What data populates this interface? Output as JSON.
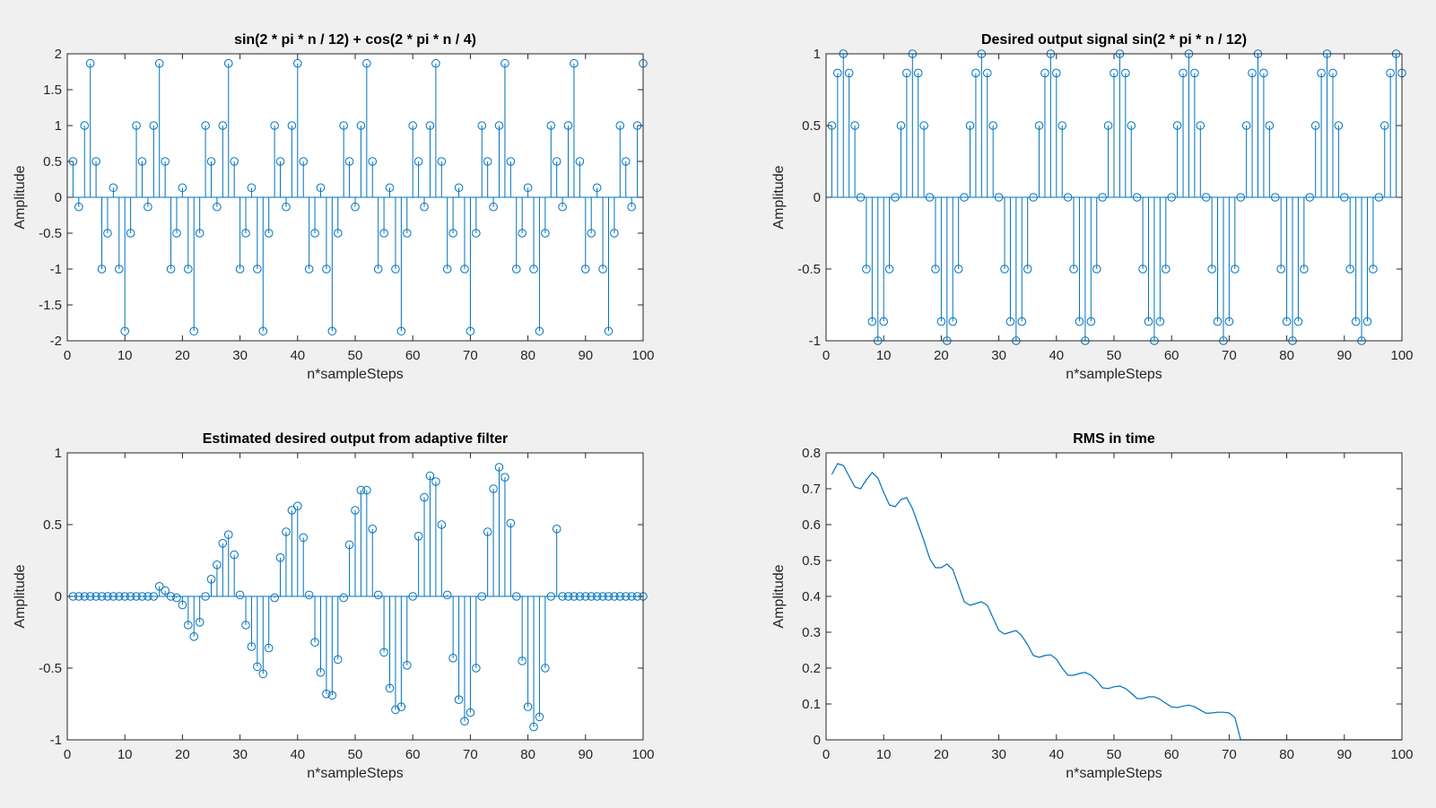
{
  "figure": {
    "background": "#f0f0f0",
    "axes_background": "#ffffff",
    "line_color": "#0072bd",
    "axis_color": "#262626"
  },
  "chart_data": [
    {
      "type": "stem",
      "title": "sin(2 * pi * n / 12) + cos(2 * pi * n / 4)",
      "xlabel": "n*sampleSteps",
      "ylabel": "Amplitude",
      "xlim": [
        0,
        100
      ],
      "ylim": [
        -2,
        2
      ],
      "xticks": [
        0,
        10,
        20,
        30,
        40,
        50,
        60,
        70,
        80,
        90,
        100
      ],
      "yticks": [
        -2,
        -1.5,
        -1,
        -0.5,
        0,
        0.5,
        1,
        1.5,
        2
      ],
      "ytick_labels": [
        "-2",
        "-1.5",
        "-1",
        "-0.5",
        "0",
        "0.5",
        "1",
        "1.5",
        "2"
      ],
      "x": [
        1,
        2,
        3,
        4,
        5,
        6,
        7,
        8,
        9,
        10,
        11,
        12,
        13,
        14,
        15,
        16,
        17,
        18,
        19,
        20,
        21,
        22,
        23,
        24,
        25,
        26,
        27,
        28,
        29,
        30,
        31,
        32,
        33,
        34,
        35,
        36,
        37,
        38,
        39,
        40,
        41,
        42,
        43,
        44,
        45,
        46,
        47,
        48,
        49,
        50,
        51,
        52,
        53,
        54,
        55,
        56,
        57,
        58,
        59,
        60,
        61,
        62,
        63,
        64,
        65,
        66,
        67,
        68,
        69,
        70,
        71,
        72,
        73,
        74,
        75,
        76,
        77,
        78,
        79,
        80,
        81,
        82,
        83,
        84,
        85,
        86,
        87,
        88,
        89,
        90,
        91,
        92,
        93,
        94,
        95,
        96,
        97,
        98,
        99,
        100
      ],
      "values": [
        0.5,
        -0.134,
        1,
        1.866,
        0.5,
        -1,
        -0.5,
        0.134,
        -1,
        -1.866,
        -0.5,
        1,
        0.5,
        -0.134,
        1,
        1.866,
        0.5,
        -1,
        -0.5,
        0.134,
        -1,
        -1.866,
        -0.5,
        1,
        0.5,
        -0.134,
        1,
        1.866,
        0.5,
        -1,
        -0.5,
        0.134,
        -1,
        -1.866,
        -0.5,
        1,
        0.5,
        -0.134,
        1,
        1.866,
        0.5,
        -1,
        -0.5,
        0.134,
        -1,
        -1.866,
        -0.5,
        1,
        0.5,
        -0.134,
        1,
        1.866,
        0.5,
        -1,
        -0.5,
        0.134,
        -1,
        -1.866,
        -0.5,
        1,
        0.5,
        -0.134,
        1,
        1.866,
        0.5,
        -1,
        -0.5,
        0.134,
        -1,
        -1.866,
        -0.5,
        1,
        0.5,
        -0.134,
        1,
        1.866,
        0.5,
        -1,
        -0.5,
        0.134,
        -1,
        -1.866,
        -0.5,
        1,
        0.5,
        -0.134,
        1,
        1.866,
        0.5,
        -1,
        -0.5,
        0.134,
        -1,
        -1.866,
        -0.5,
        1,
        0.5,
        -0.134,
        1,
        1.866
      ]
    },
    {
      "type": "stem",
      "title": "Desired output signal sin(2 * pi * n / 12)",
      "xlabel": "n*sampleSteps",
      "ylabel": "Amplitude",
      "xlim": [
        0,
        100
      ],
      "ylim": [
        -1,
        1
      ],
      "xticks": [
        0,
        10,
        20,
        30,
        40,
        50,
        60,
        70,
        80,
        90,
        100
      ],
      "yticks": [
        -1,
        -0.5,
        0,
        0.5,
        1
      ],
      "ytick_labels": [
        "-1",
        "-0.5",
        "0",
        "0.5",
        "1"
      ],
      "x": [
        1,
        2,
        3,
        4,
        5,
        6,
        7,
        8,
        9,
        10,
        11,
        12,
        13,
        14,
        15,
        16,
        17,
        18,
        19,
        20,
        21,
        22,
        23,
        24,
        25,
        26,
        27,
        28,
        29,
        30,
        31,
        32,
        33,
        34,
        35,
        36,
        37,
        38,
        39,
        40,
        41,
        42,
        43,
        44,
        45,
        46,
        47,
        48,
        49,
        50,
        51,
        52,
        53,
        54,
        55,
        56,
        57,
        58,
        59,
        60,
        61,
        62,
        63,
        64,
        65,
        66,
        67,
        68,
        69,
        70,
        71,
        72,
        73,
        74,
        75,
        76,
        77,
        78,
        79,
        80,
        81,
        82,
        83,
        84,
        85,
        86,
        87,
        88,
        89,
        90,
        91,
        92,
        93,
        94,
        95,
        96,
        97,
        98,
        99,
        100
      ],
      "values": [
        0.5,
        0.866,
        1,
        0.866,
        0.5,
        0,
        -0.5,
        -0.866,
        -1,
        -0.866,
        -0.5,
        0,
        0.5,
        0.866,
        1,
        0.866,
        0.5,
        0,
        -0.5,
        -0.866,
        -1,
        -0.866,
        -0.5,
        0,
        0.5,
        0.866,
        1,
        0.866,
        0.5,
        0,
        -0.5,
        -0.866,
        -1,
        -0.866,
        -0.5,
        0,
        0.5,
        0.866,
        1,
        0.866,
        0.5,
        0,
        -0.5,
        -0.866,
        -1,
        -0.866,
        -0.5,
        0,
        0.5,
        0.866,
        1,
        0.866,
        0.5,
        0,
        -0.5,
        -0.866,
        -1,
        -0.866,
        -0.5,
        0,
        0.5,
        0.866,
        1,
        0.866,
        0.5,
        0,
        -0.5,
        -0.866,
        -1,
        -0.866,
        -0.5,
        0,
        0.5,
        0.866,
        1,
        0.866,
        0.5,
        0,
        -0.5,
        -0.866,
        -1,
        -0.866,
        -0.5,
        0,
        0.5,
        0.866,
        1,
        0.866,
        0.5,
        0,
        -0.5,
        -0.866,
        -1,
        -0.866,
        -0.5,
        0,
        0.5,
        0.866,
        1,
        0.866
      ]
    },
    {
      "type": "stem",
      "title": "Estimated desired output from adaptive filter",
      "xlabel": "n*sampleSteps",
      "ylabel": "Amplitude",
      "xlim": [
        0,
        100
      ],
      "ylim": [
        -1,
        1
      ],
      "xticks": [
        0,
        10,
        20,
        30,
        40,
        50,
        60,
        70,
        80,
        90,
        100
      ],
      "yticks": [
        -1,
        -0.5,
        0,
        0.5,
        1
      ],
      "ytick_labels": [
        "-1",
        "-0.5",
        "0",
        "0.5",
        "1"
      ],
      "x": [
        1,
        2,
        3,
        4,
        5,
        6,
        7,
        8,
        9,
        10,
        11,
        12,
        13,
        14,
        15,
        16,
        17,
        18,
        19,
        20,
        21,
        22,
        23,
        24,
        25,
        26,
        27,
        28,
        29,
        30,
        31,
        32,
        33,
        34,
        35,
        36,
        37,
        38,
        39,
        40,
        41,
        42,
        43,
        44,
        45,
        46,
        47,
        48,
        49,
        50,
        51,
        52,
        53,
        54,
        55,
        56,
        57,
        58,
        59,
        60,
        61,
        62,
        63,
        64,
        65,
        66,
        67,
        68,
        69,
        70,
        71,
        72,
        73,
        74,
        75,
        76,
        77,
        78,
        79,
        80,
        81,
        82,
        83,
        84,
        85,
        86,
        87,
        88,
        89,
        90,
        91,
        92,
        93,
        94,
        95,
        96,
        97,
        98,
        99,
        100
      ],
      "values": [
        0,
        0,
        0,
        0,
        0,
        0,
        0,
        0,
        0,
        0,
        0,
        0,
        0,
        0,
        0,
        0.07,
        0.04,
        0,
        -0.01,
        -0.06,
        -0.2,
        -0.28,
        -0.18,
        0,
        0.12,
        0.22,
        0.37,
        0.43,
        0.29,
        0.01,
        -0.2,
        -0.35,
        -0.49,
        -0.54,
        -0.36,
        -0.01,
        0.27,
        0.45,
        0.6,
        0.63,
        0.41,
        0.01,
        -0.32,
        -0.53,
        -0.68,
        -0.69,
        -0.44,
        -0.01,
        0.36,
        0.6,
        0.74,
        0.74,
        0.47,
        0.01,
        -0.39,
        -0.64,
        -0.79,
        -0.77,
        -0.48,
        0,
        0.42,
        0.69,
        0.84,
        0.8,
        0.5,
        0.01,
        -0.43,
        -0.72,
        -0.87,
        -0.81,
        -0.5,
        0,
        0.45,
        0.75,
        0.9,
        0.83,
        0.51,
        0,
        -0.45,
        -0.77,
        -0.91,
        -0.84,
        -0.5,
        0,
        0.47,
        0,
        0,
        0,
        0,
        0,
        0,
        0,
        0,
        0,
        0,
        0,
        0,
        0,
        0,
        0
      ]
    },
    {
      "type": "line",
      "title": "RMS in time",
      "xlabel": "n*sampleSteps",
      "ylabel": "Amplitude",
      "xlim": [
        0,
        100
      ],
      "ylim": [
        0,
        0.8
      ],
      "xticks": [
        0,
        10,
        20,
        30,
        40,
        50,
        60,
        70,
        80,
        90,
        100
      ],
      "yticks": [
        0,
        0.1,
        0.2,
        0.3,
        0.4,
        0.5,
        0.6,
        0.7,
        0.8
      ],
      "ytick_labels": [
        "0",
        "0.1",
        "0.2",
        "0.3",
        "0.4",
        "0.5",
        "0.6",
        "0.7",
        "0.8"
      ],
      "x": [
        1,
        2,
        3,
        4,
        5,
        6,
        7,
        8,
        9,
        10,
        11,
        12,
        13,
        14,
        15,
        16,
        17,
        18,
        19,
        20,
        21,
        22,
        23,
        24,
        25,
        26,
        27,
        28,
        29,
        30,
        31,
        32,
        33,
        34,
        35,
        36,
        37,
        38,
        39,
        40,
        41,
        42,
        43,
        44,
        45,
        46,
        47,
        48,
        49,
        50,
        51,
        52,
        53,
        54,
        55,
        56,
        57,
        58,
        59,
        60,
        61,
        62,
        63,
        64,
        65,
        66,
        67,
        68,
        69,
        70,
        71,
        72,
        73,
        74,
        75,
        76,
        77,
        78,
        79,
        80,
        81,
        82,
        83,
        84,
        85,
        86,
        87,
        88,
        89,
        90,
        91,
        92,
        93,
        94,
        95,
        96,
        97,
        98,
        99,
        100
      ],
      "values": [
        0.74,
        0.77,
        0.765,
        0.735,
        0.705,
        0.7,
        0.725,
        0.745,
        0.73,
        0.69,
        0.655,
        0.65,
        0.67,
        0.675,
        0.645,
        0.6,
        0.555,
        0.505,
        0.48,
        0.48,
        0.49,
        0.475,
        0.43,
        0.385,
        0.375,
        0.38,
        0.385,
        0.375,
        0.34,
        0.305,
        0.295,
        0.3,
        0.305,
        0.29,
        0.265,
        0.235,
        0.23,
        0.235,
        0.237,
        0.225,
        0.2,
        0.18,
        0.18,
        0.185,
        0.188,
        0.18,
        0.165,
        0.145,
        0.143,
        0.148,
        0.15,
        0.143,
        0.13,
        0.115,
        0.115,
        0.12,
        0.12,
        0.113,
        0.102,
        0.092,
        0.09,
        0.094,
        0.097,
        0.092,
        0.083,
        0.074,
        0.075,
        0.077,
        0.077,
        0.075,
        0.062,
        0,
        0,
        0,
        0,
        0,
        0,
        0,
        0,
        0,
        0,
        0,
        0,
        0,
        0,
        0,
        0,
        0,
        0,
        0,
        0,
        0,
        0,
        0,
        0,
        0,
        0,
        0,
        0,
        0
      ]
    }
  ]
}
